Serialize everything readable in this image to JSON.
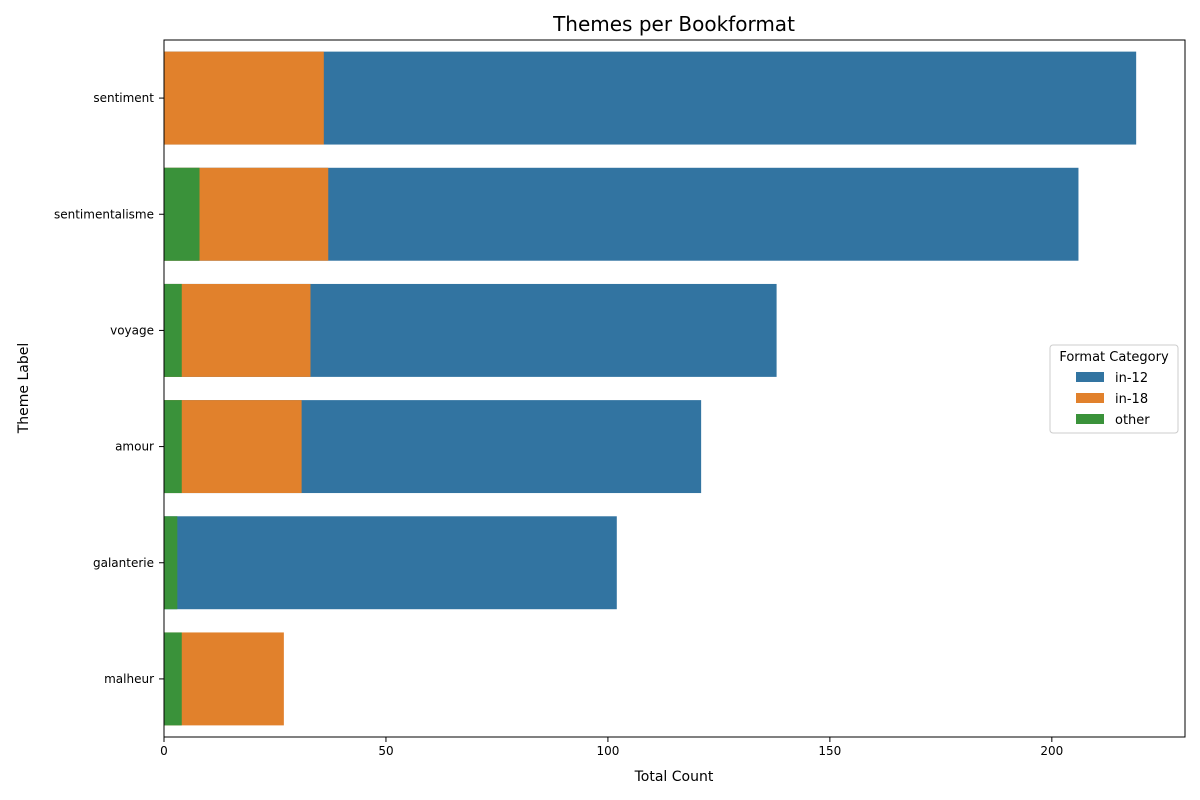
{
  "chart_data": {
    "type": "bar",
    "orientation": "horizontal",
    "stacking": "overlay",
    "title": "Themes per Bookformat",
    "xlabel": "Total Count",
    "ylabel": "Theme Label",
    "categories": [
      "sentiment",
      "sentimentalisme",
      "voyage",
      "amour",
      "galanterie",
      "malheur"
    ],
    "series": [
      {
        "name": "in-12",
        "color": "#3274a1",
        "values": [
          219,
          206,
          138,
          121,
          102,
          0
        ]
      },
      {
        "name": "in-18",
        "color": "#e1812c",
        "values": [
          36,
          37,
          33,
          31,
          0,
          27
        ]
      },
      {
        "name": "other",
        "color": "#3a923a",
        "values": [
          0,
          8,
          4,
          4,
          3,
          4
        ]
      }
    ],
    "xlim": [
      0,
      230
    ],
    "xticks": [
      0,
      50,
      100,
      150,
      200
    ],
    "grid": false,
    "legend": {
      "title": "Format Category",
      "position": "center-right"
    }
  }
}
